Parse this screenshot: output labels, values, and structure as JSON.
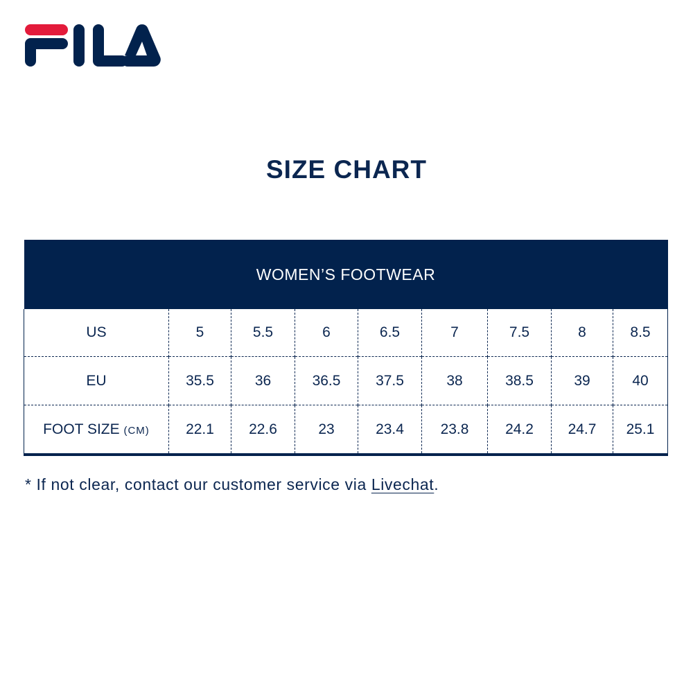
{
  "brand": {
    "logo_text": "FILA",
    "colors": {
      "navy": "#02224d",
      "red": "#e31b3b"
    }
  },
  "title": "SIZE CHART",
  "table": {
    "header": "WOMEN’S FOOTWEAR",
    "rows": [
      {
        "label": "US",
        "unit": "",
        "values": [
          "5",
          "5.5",
          "6",
          "6.5",
          "7",
          "7.5",
          "8",
          "8.5"
        ]
      },
      {
        "label": "EU",
        "unit": "",
        "values": [
          "35.5",
          "36",
          "36.5",
          "37.5",
          "38",
          "38.5",
          "39",
          "40"
        ]
      },
      {
        "label": "FOOT SIZE",
        "unit": "(CM)",
        "values": [
          "22.1",
          "22.6",
          "23",
          "23.4",
          "23.8",
          "24.2",
          "24.7",
          "25.1"
        ]
      }
    ]
  },
  "note": {
    "text": "* If not clear, contact our customer service via ",
    "link": "Livechat",
    "suffix": "."
  }
}
